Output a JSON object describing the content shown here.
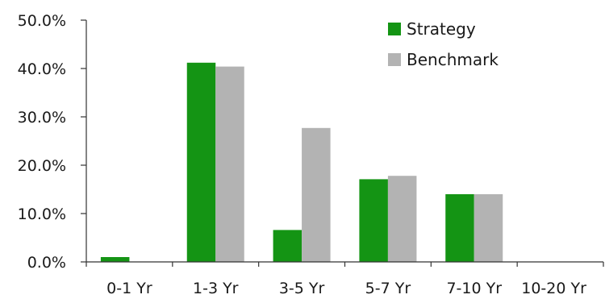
{
  "chart_data": {
    "type": "bar",
    "title": "",
    "xlabel": "",
    "ylabel": "",
    "categories": [
      "0-1 Yr",
      "1-3 Yr",
      "3-5 Yr",
      "5-7 Yr",
      "7-10 Yr",
      "10-20 Yr"
    ],
    "series": [
      {
        "name": "Strategy",
        "color": "#149414",
        "values": [
          1.0,
          41.2,
          6.6,
          17.1,
          14.0,
          0.0
        ]
      },
      {
        "name": "Benchmark",
        "color": "#b3b3b3",
        "values": [
          0.0,
          40.4,
          27.7,
          17.8,
          14.0,
          0.0
        ]
      }
    ],
    "ylim": [
      0,
      50
    ],
    "yticks": [
      0,
      10,
      20,
      30,
      40,
      50
    ],
    "ytick_labels": [
      "0.0%",
      "10.0%",
      "20.0%",
      "30.0%",
      "40.0%",
      "50.0%"
    ],
    "grid": false,
    "legend_position": "top-right"
  }
}
